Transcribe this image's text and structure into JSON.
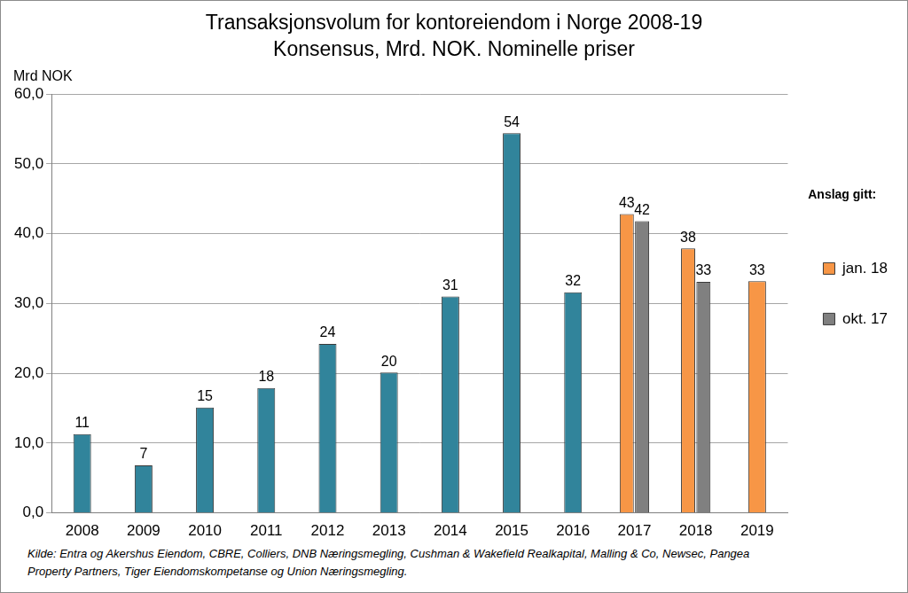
{
  "chart_data": {
    "type": "bar",
    "title": "Transaksjonsvolum for kontoreiendom i Norge 2008-19",
    "subtitle": "Konsensus, Mrd. NOK. Nominelle priser",
    "y_label": "Mrd NOK",
    "source": "Kilde: Entra og Akershus Eiendom, CBRE, Colliers, DNB Næringsmegling, Cushman & Wakefield Realkapital, Malling & Co, Newsec, Pangea Property Partners, Tiger Eiendomskompetanse og Union Næringsmegling.",
    "categories": [
      "2008",
      "2009",
      "2010",
      "2011",
      "2012",
      "2013",
      "2014",
      "2015",
      "2016",
      "2017",
      "2018",
      "2019"
    ],
    "series": [
      {
        "color": "#31849b",
        "values": [
          11.3,
          6.8,
          15.1,
          17.9,
          24.2,
          20.1,
          31.0,
          54.4,
          31.6,
          null,
          null,
          null
        ],
        "value_labels": [
          "11",
          "7",
          "15",
          "18",
          "24",
          "20",
          "31",
          "54",
          "32",
          null,
          null,
          null
        ]
      },
      {
        "name": "jan. 18",
        "color": "#f79646",
        "values": [
          null,
          null,
          null,
          null,
          null,
          null,
          null,
          null,
          null,
          42.8,
          37.9,
          33.2
        ],
        "value_labels": [
          null,
          null,
          null,
          null,
          null,
          null,
          null,
          null,
          null,
          "43",
          "38",
          "33"
        ]
      },
      {
        "name": "okt. 17",
        "color": "#808080",
        "values": [
          null,
          null,
          null,
          null,
          null,
          null,
          null,
          null,
          null,
          41.8,
          33.1,
          null
        ],
        "value_labels": [
          null,
          null,
          null,
          null,
          null,
          null,
          null,
          null,
          null,
          "42",
          "33",
          null
        ]
      }
    ],
    "legend": "right",
    "legend_title": "Anslag gitt:",
    "ylim": [
      0,
      60
    ],
    "yticks": [
      {
        "value": 0,
        "label": "0,0"
      },
      {
        "value": 10,
        "label": "10,0"
      },
      {
        "value": 20,
        "label": "20,0"
      },
      {
        "value": 30,
        "label": "30,0"
      },
      {
        "value": 40,
        "label": "40,0"
      },
      {
        "value": 50,
        "label": "50,0"
      },
      {
        "value": 60,
        "label": "60,0"
      }
    ],
    "grid": true,
    "data_labels": true
  }
}
